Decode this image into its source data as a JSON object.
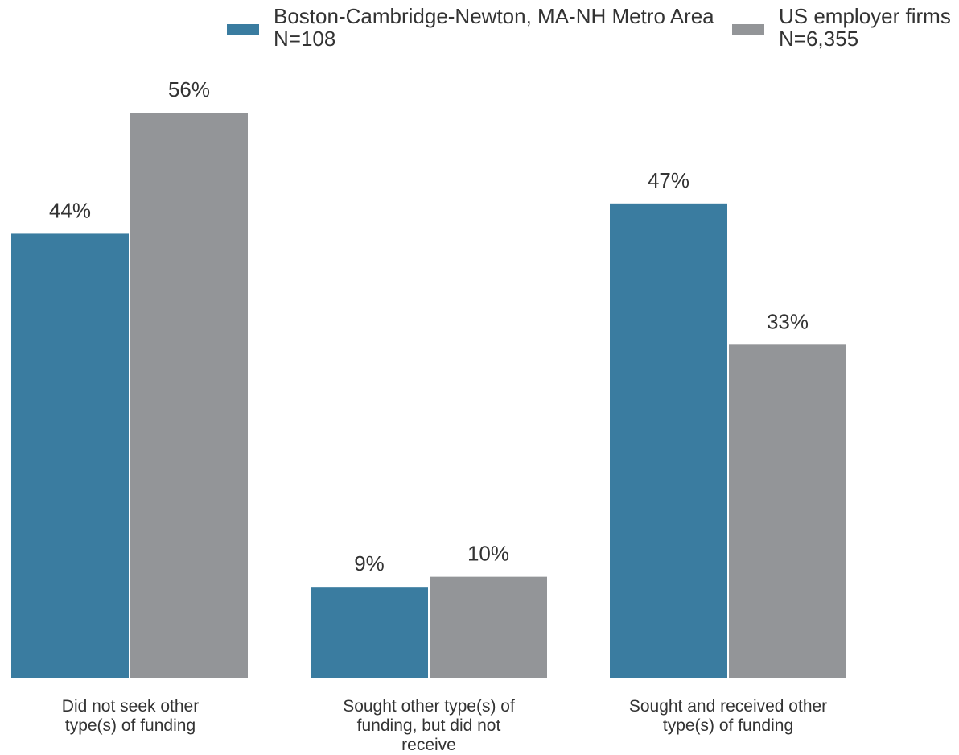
{
  "chart_data": {
    "type": "bar",
    "categories": [
      "Did not seek other type(s) of funding",
      "Sought other type(s) of funding, but did not receive",
      "Sought and received other type(s) of funding"
    ],
    "series": [
      {
        "name": "Boston-Cambridge-Newton, MA-NH Metro Area",
        "n_label": "N=108",
        "values": [
          44,
          9,
          47
        ],
        "color": "#3a7ca0"
      },
      {
        "name": "US employer firms",
        "n_label": "N=6,355",
        "values": [
          56,
          10,
          33
        ],
        "color": "#939598"
      }
    ],
    "data_labels": [
      [
        "44%",
        "9%",
        "47%"
      ],
      [
        "56%",
        "10%",
        "33%"
      ]
    ],
    "ylim": [
      0,
      60
    ],
    "grid": false,
    "legend_position": "top"
  }
}
